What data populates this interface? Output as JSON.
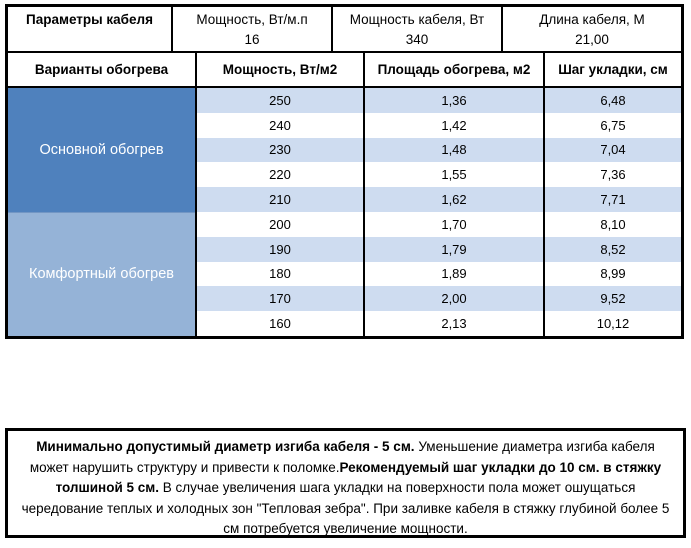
{
  "cable_params": {
    "title": "Параметры кабеля",
    "columns": [
      {
        "label": "Мощность, Вт/м.п",
        "value": "16"
      },
      {
        "label": "Мощность кабеля, Вт",
        "value": "340"
      },
      {
        "label": "Длина кабеля, М",
        "value": "21,00"
      }
    ]
  },
  "heating_table": {
    "headers": {
      "variants": "Варианты обогрева",
      "power": "Мощность, Вт/м2",
      "area": "Площадь обогрева, м2",
      "spacing": "Шаг укладки, см"
    },
    "sections": [
      {
        "label": "Основной обогрев",
        "rows": [
          [
            "250",
            "1,36",
            "6,48"
          ],
          [
            "240",
            "1,42",
            "6,75"
          ],
          [
            "230",
            "1,48",
            "7,04"
          ],
          [
            "220",
            "1,55",
            "7,36"
          ],
          [
            "210",
            "1,62",
            "7,71"
          ]
        ]
      },
      {
        "label": "Комфортный обогрев",
        "rows": [
          [
            "200",
            "1,70",
            "8,10"
          ],
          [
            "190",
            "1,79",
            "8,52"
          ],
          [
            "180",
            "1,89",
            "8,99"
          ],
          [
            "170",
            "2,00",
            "9,52"
          ],
          [
            "160",
            "2,13",
            "10,12"
          ]
        ]
      }
    ]
  },
  "note": {
    "segments": [
      {
        "text": "Минимально допустимый диаметр изгиба кабеля - 5 см.",
        "bold": true
      },
      {
        "text": " Уменьшение диаметра изгиба кабеля может нарушить структуру и привести к поломке.",
        "bold": false
      },
      {
        "text": "Рекомендуемый шаг укладки до 10 см. в стяжку толшиной 5 см.",
        "bold": true
      },
      {
        "text": " В случае увеличения шага укладки на поверхности пола может ошущаться чередование теплых и холодных зон \"Тепловая зебра\". При заливке кабеля в стяжку глубиной более 5 см потребуется увеличение мощности.",
        "bold": false
      }
    ]
  },
  "colors": {
    "section_main": "#4F81BD",
    "section_comfort": "#95B3D7",
    "row_band": "#CEDCF0",
    "border": "#000000"
  }
}
